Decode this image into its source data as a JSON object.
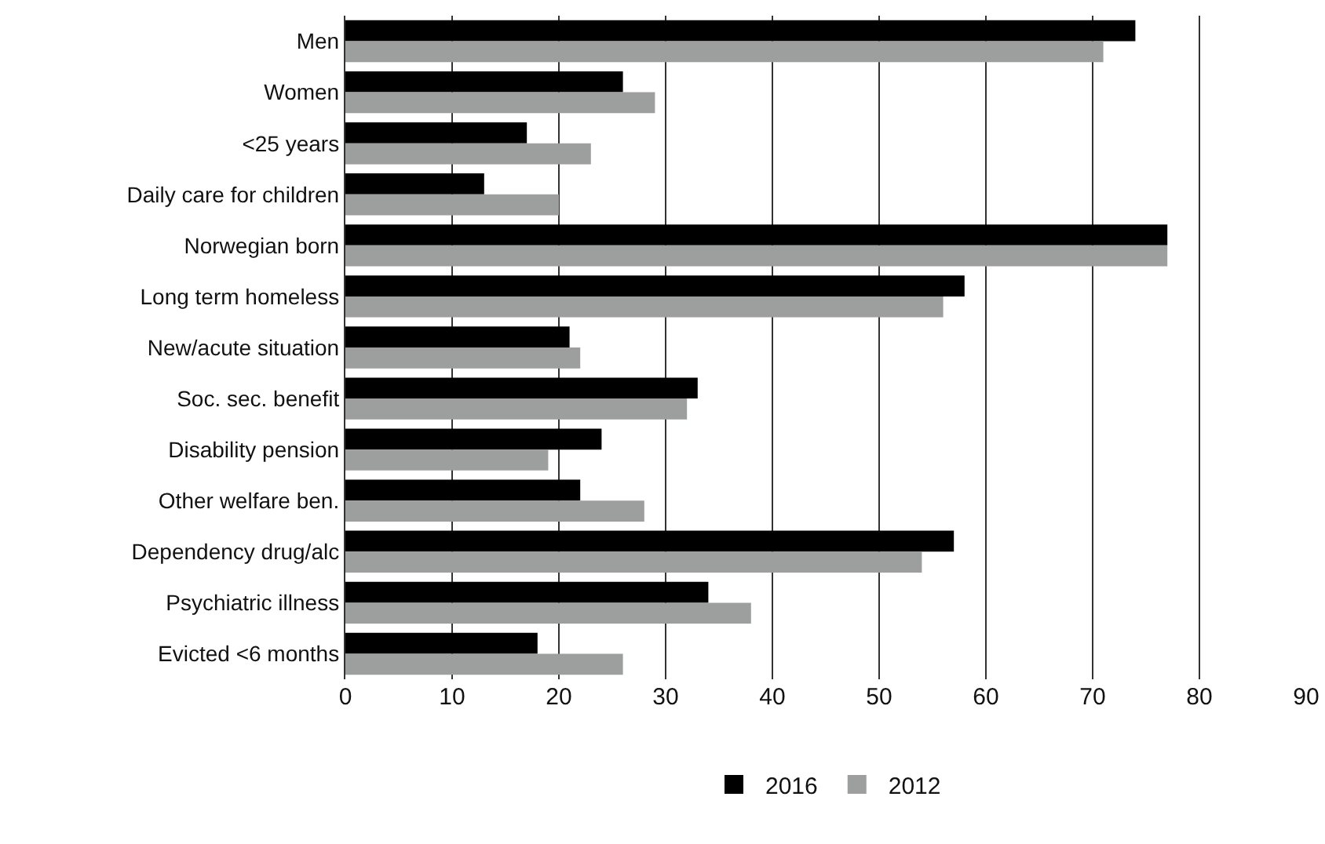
{
  "chart_data": {
    "type": "bar",
    "orientation": "horizontal",
    "categories": [
      "Men",
      "Women",
      "<25 years",
      "Daily care for children",
      "Norwegian born",
      "Long term homeless",
      "New/acute situation",
      "Soc. sec. benefit",
      "Disability pension",
      "Other welfare ben.",
      "Dependency drug/alc",
      "Psychiatric illness",
      "Evicted <6 months"
    ],
    "series": [
      {
        "name": "2016",
        "color": "#000000",
        "values": [
          74,
          26,
          17,
          13,
          77,
          58,
          21,
          33,
          24,
          22,
          57,
          34,
          18
        ]
      },
      {
        "name": "2012",
        "color": "#9d9e9e",
        "values": [
          71,
          29,
          23,
          20,
          77,
          56,
          22,
          32,
          19,
          28,
          54,
          38,
          26
        ]
      }
    ],
    "xlim": [
      0,
      90
    ],
    "xticks": [
      0,
      10,
      20,
      30,
      40,
      50,
      60,
      70,
      80,
      90
    ],
    "grid": "x",
    "legend": "bottom"
  }
}
